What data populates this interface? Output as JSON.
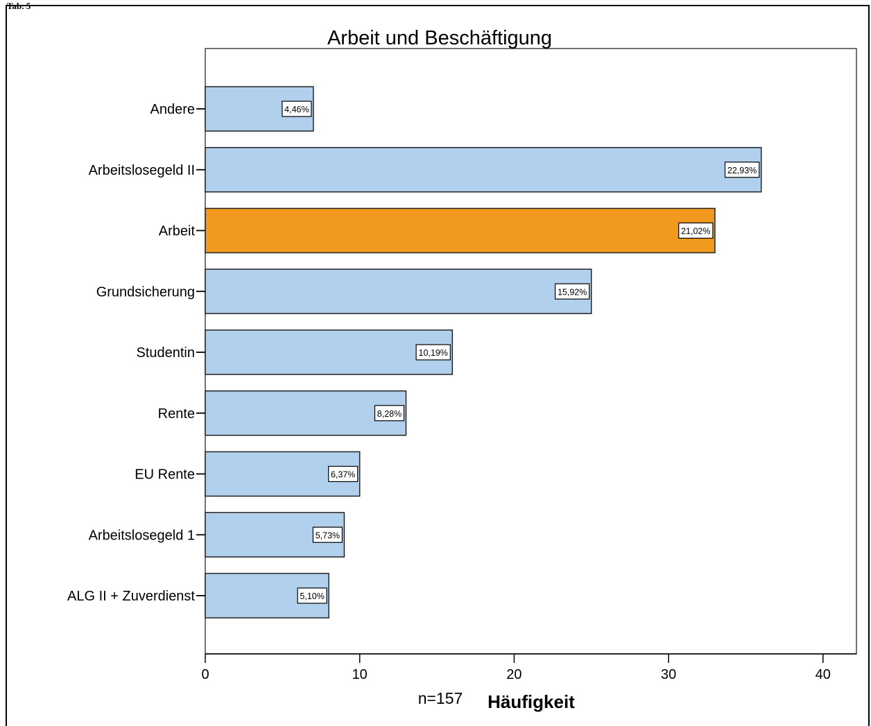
{
  "corner_label": "Tab. 5",
  "chart_data": {
    "type": "bar",
    "orientation": "horizontal",
    "title": "Arbeit und Beschäftigung",
    "xlabel": "Häufigkeit",
    "sample_note": "n=157",
    "xlim": [
      0,
      42
    ],
    "xticks": [
      0,
      10,
      20,
      30,
      40
    ],
    "grid": false,
    "legend": "none",
    "categories": [
      "Andere",
      "Arbeitslosegeld II",
      "Arbeit",
      "Grundsicherung",
      "Studentin",
      "Rente",
      "EU Rente",
      "Arbeitslosegeld 1",
      "ALG II + Zuverdienst"
    ],
    "values": [
      7,
      36,
      33,
      25,
      16,
      13,
      10,
      9,
      8
    ],
    "data_labels": [
      "4,46%",
      "22,93%",
      "21,02%",
      "15,92%",
      "10,19%",
      "8,28%",
      "6,37%",
      "5,73%",
      "5,10%"
    ],
    "highlight_index": 2,
    "colors": {
      "bar": "#b0d0ee",
      "highlight": "#f19a1e",
      "outline": "#222222"
    }
  }
}
